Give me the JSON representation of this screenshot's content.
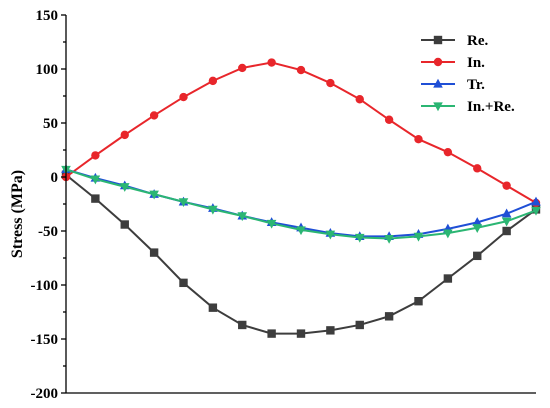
{
  "chart_data": {
    "type": "line",
    "title": "",
    "xlabel": "",
    "ylabel": "Stress (MPa)",
    "ylim": [
      -200,
      150
    ],
    "xlim": [
      0,
      16
    ],
    "yticks": [
      150,
      100,
      50,
      0,
      -50,
      -100,
      -150,
      -200
    ],
    "ytick_labels": [
      "150",
      "100",
      "50",
      "0",
      "-50",
      "-100",
      "-150",
      "-200"
    ],
    "grid": false,
    "legend_position": "top-right",
    "x": [
      0,
      1,
      2,
      3,
      4,
      5,
      6,
      7,
      8,
      9,
      10,
      11,
      12,
      13,
      14,
      15,
      16
    ],
    "series": [
      {
        "name": "Re.",
        "color": "#3d3d3d",
        "marker": "square",
        "values": [
          2,
          -20,
          -44,
          -70,
          -98,
          -121,
          -137,
          -145,
          -145,
          -142,
          -137,
          -129,
          -115,
          -94,
          -73,
          -50,
          -30
        ]
      },
      {
        "name": "In.",
        "color": "#e8262b",
        "marker": "circle",
        "values": [
          0,
          20,
          39,
          57,
          74,
          89,
          101,
          106,
          99,
          87,
          72,
          53,
          35,
          23,
          8,
          -8,
          -24
        ]
      },
      {
        "name": "Tr.",
        "color": "#1f4fd6",
        "marker": "triangle-up",
        "values": [
          7,
          -1,
          -8,
          -16,
          -23,
          -29,
          -36,
          -42,
          -47,
          -52,
          -55,
          -55,
          -53,
          -48,
          -42,
          -34,
          -23
        ]
      },
      {
        "name": "In.+Re.",
        "color": "#2bb673",
        "marker": "triangle-down",
        "values": [
          7,
          -2,
          -9,
          -16,
          -23,
          -30,
          -36,
          -43,
          -49,
          -53,
          -56,
          -57,
          -55,
          -52,
          -47,
          -41,
          -31
        ]
      }
    ]
  }
}
